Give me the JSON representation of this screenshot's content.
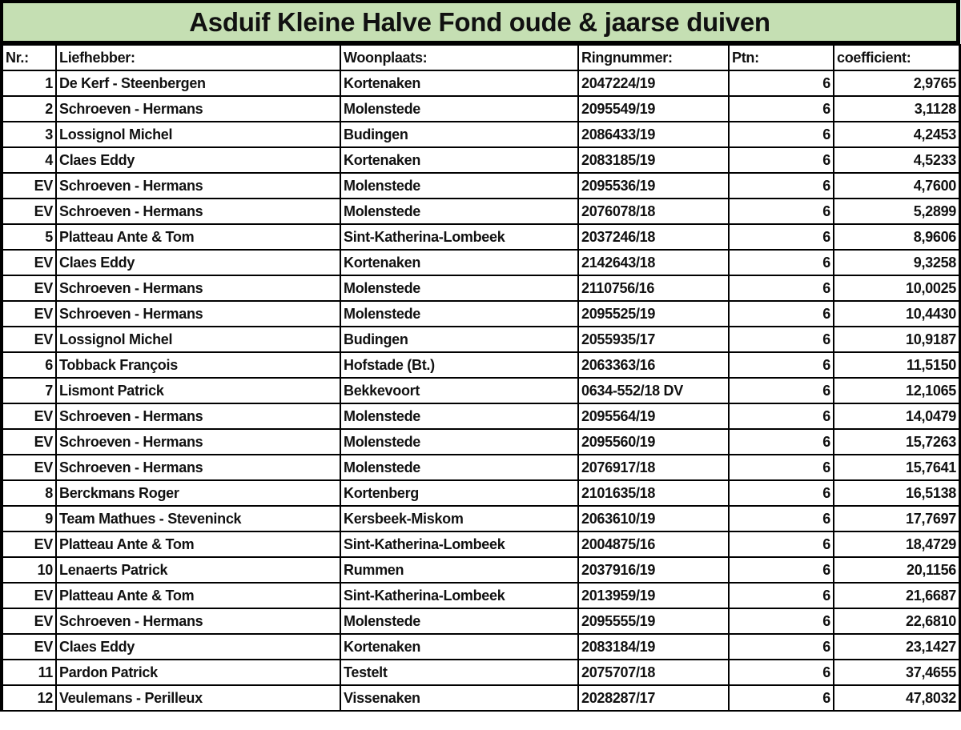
{
  "title": "Asduif Kleine Halve Fond oude & jaarse duiven",
  "colors": {
    "title_bg": "#c5dfb3",
    "border": "#000000"
  },
  "columns": [
    "Nr.:",
    "Liefhebber:",
    "Woonplaats:",
    "Ringnummer:",
    "Ptn:",
    "coefficient:"
  ],
  "rows": [
    [
      "1",
      "De Kerf - Steenbergen",
      "Kortenaken",
      "2047224/19",
      "6",
      "2,9765"
    ],
    [
      "2",
      "Schroeven - Hermans",
      "Molenstede",
      "2095549/19",
      "6",
      "3,1128"
    ],
    [
      "3",
      "Lossignol Michel",
      "Budingen",
      "2086433/19",
      "6",
      "4,2453"
    ],
    [
      "4",
      "Claes Eddy",
      "Kortenaken",
      "2083185/19",
      "6",
      "4,5233"
    ],
    [
      "EV",
      "Schroeven - Hermans",
      "Molenstede",
      "2095536/19",
      "6",
      "4,7600"
    ],
    [
      "EV",
      "Schroeven - Hermans",
      "Molenstede",
      "2076078/18",
      "6",
      "5,2899"
    ],
    [
      "5",
      "Platteau Ante & Tom",
      "Sint-Katherina-Lombeek",
      "2037246/18",
      "6",
      "8,9606"
    ],
    [
      "EV",
      "Claes Eddy",
      "Kortenaken",
      "2142643/18",
      "6",
      "9,3258"
    ],
    [
      "EV",
      "Schroeven - Hermans",
      "Molenstede",
      "2110756/16",
      "6",
      "10,0025"
    ],
    [
      "EV",
      "Schroeven - Hermans",
      "Molenstede",
      "2095525/19",
      "6",
      "10,4430"
    ],
    [
      "EV",
      "Lossignol Michel",
      "Budingen",
      "2055935/17",
      "6",
      "10,9187"
    ],
    [
      "6",
      "Tobback François",
      "Hofstade (Bt.)",
      "2063363/16",
      "6",
      "11,5150"
    ],
    [
      "7",
      "Lismont Patrick",
      "Bekkevoort",
      "0634-552/18 DV",
      "6",
      "12,1065"
    ],
    [
      "EV",
      "Schroeven - Hermans",
      "Molenstede",
      "2095564/19",
      "6",
      "14,0479"
    ],
    [
      "EV",
      "Schroeven - Hermans",
      "Molenstede",
      "2095560/19",
      "6",
      "15,7263"
    ],
    [
      "EV",
      "Schroeven - Hermans",
      "Molenstede",
      "2076917/18",
      "6",
      "15,7641"
    ],
    [
      "8",
      "Berckmans Roger",
      "Kortenberg",
      "2101635/18",
      "6",
      "16,5138"
    ],
    [
      "9",
      "Team Mathues - Steveninck",
      "Kersbeek-Miskom",
      "2063610/19",
      "6",
      "17,7697"
    ],
    [
      "EV",
      "Platteau Ante & Tom",
      "Sint-Katherina-Lombeek",
      "2004875/16",
      "6",
      "18,4729"
    ],
    [
      "10",
      "Lenaerts Patrick",
      "Rummen",
      "2037916/19",
      "6",
      "20,1156"
    ],
    [
      "EV",
      "Platteau Ante & Tom",
      "Sint-Katherina-Lombeek",
      "2013959/19",
      "6",
      "21,6687"
    ],
    [
      "EV",
      "Schroeven - Hermans",
      "Molenstede",
      "2095555/19",
      "6",
      "22,6810"
    ],
    [
      "EV",
      "Claes Eddy",
      "Kortenaken",
      "2083184/19",
      "6",
      "23,1427"
    ],
    [
      "11",
      "Pardon Patrick",
      "Testelt",
      "2075707/18",
      "6",
      "37,4655"
    ],
    [
      "12",
      "Veulemans - Perilleux",
      "Vissenaken",
      "2028287/17",
      "6",
      "47,8032"
    ]
  ]
}
